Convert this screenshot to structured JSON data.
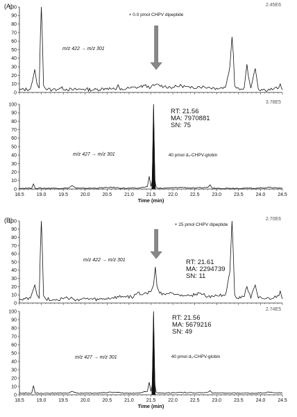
{
  "chart_data": [
    {
      "type": "line",
      "panel_label": "(A)",
      "transition": "m/z 422 → m/z 301",
      "annotation": "+ 0.0 pmol CHPV dipeptide",
      "scale": "2.45E6",
      "metrics": null,
      "yticks": [
        "0",
        "10",
        "20",
        "30",
        "40",
        "50",
        "60",
        "70",
        "80",
        "90",
        "100"
      ],
      "ylim": [
        0,
        100
      ],
      "xlim": [
        18.5,
        24.5
      ],
      "xticks": [],
      "xlabel": "",
      "arrow_x": 21.62,
      "x": [
        18.5,
        18.75,
        18.8,
        18.85,
        18.9,
        18.95,
        18.98,
        19.0,
        19.02,
        19.05,
        19.1,
        19.25,
        19.45,
        19.7,
        19.95,
        20.2,
        20.5,
        20.7,
        20.75,
        20.8,
        21.0,
        21.2,
        21.35,
        21.5,
        21.6,
        21.8,
        22.0,
        22.2,
        22.4,
        22.6,
        22.8,
        23.0,
        23.2,
        23.3,
        23.35,
        23.38,
        23.41,
        23.45,
        23.55,
        23.63,
        23.66,
        23.69,
        23.72,
        23.78,
        23.85,
        23.88,
        23.91,
        23.95,
        24.1,
        24.3,
        24.42,
        24.45,
        24.48,
        24.5
      ],
      "y": [
        3,
        4,
        14,
        27,
        10,
        5,
        70,
        100,
        70,
        8,
        4,
        3,
        5,
        3,
        4,
        3,
        5,
        3,
        9,
        3,
        5,
        6,
        8,
        6,
        9,
        7,
        6,
        8,
        5,
        7,
        6,
        5,
        6,
        30,
        65,
        45,
        8,
        5,
        4,
        6,
        20,
        33,
        20,
        5,
        22,
        28,
        18,
        4,
        3,
        4,
        6,
        10,
        5,
        3
      ]
    },
    {
      "type": "line",
      "panel_label": "",
      "transition": "m/z 427 → m/z 301",
      "annotation": "40 pmol d₅-CHPV-globin",
      "scale": "3.78E5",
      "metrics": [
        "RT: 21.56",
        "MA: 7970881",
        "SN: 75"
      ],
      "yticks": [
        "0",
        "10",
        "20",
        "30",
        "40",
        "50",
        "60",
        "70",
        "80",
        "90",
        "100"
      ],
      "ylim": [
        0,
        100
      ],
      "xlim": [
        18.5,
        24.5
      ],
      "xticks": [
        "18.5",
        "19.0",
        "19.5",
        "20.0",
        "20.5",
        "21.0",
        "21.5",
        "22.0",
        "22.5",
        "23.0",
        "23.5",
        "24.0",
        "24.5"
      ],
      "xlabel": "Time (min)",
      "arrow_x": null,
      "x": [
        18.5,
        18.7,
        18.78,
        18.82,
        18.86,
        19.0,
        19.3,
        19.6,
        19.7,
        19.8,
        20.2,
        20.6,
        20.9,
        21.2,
        21.42,
        21.46,
        21.5,
        21.53,
        21.56,
        21.59,
        21.62,
        21.66,
        21.8,
        22.2,
        22.5,
        22.8,
        22.85,
        22.9,
        23.0,
        23.3,
        23.6,
        23.9,
        24.2,
        24.5
      ],
      "y": [
        1,
        1,
        1,
        6,
        1,
        1,
        1,
        1,
        4,
        1,
        1,
        2,
        1,
        1,
        3,
        15,
        3,
        10,
        100,
        10,
        2,
        1,
        1,
        2,
        1,
        2,
        5,
        1,
        1,
        1,
        1,
        1,
        2,
        1
      ]
    },
    {
      "type": "line",
      "panel_label": "(B)",
      "transition": "m/z 422 → m/z 301",
      "annotation": "+ 25 pmol CHPV dipeptide",
      "scale": "2.70E6",
      "metrics": [
        "RT: 21.61",
        "MA: 2294739",
        "SN: 11"
      ],
      "yticks": [
        "0",
        "10",
        "20",
        "30",
        "40",
        "50",
        "60",
        "70",
        "80",
        "90",
        "100"
      ],
      "ylim": [
        0,
        100
      ],
      "xlim": [
        18.5,
        24.5
      ],
      "xticks": [],
      "xlabel": "",
      "arrow_x": 21.62,
      "x": [
        18.5,
        18.75,
        18.8,
        18.85,
        18.9,
        18.95,
        18.98,
        19.0,
        19.02,
        19.05,
        19.1,
        19.3,
        19.6,
        19.8,
        20.0,
        20.3,
        20.6,
        20.9,
        21.1,
        21.2,
        21.3,
        21.4,
        21.5,
        21.56,
        21.6,
        21.64,
        21.7,
        21.8,
        22.0,
        22.2,
        22.4,
        22.6,
        22.8,
        23.0,
        23.2,
        23.3,
        23.35,
        23.38,
        23.41,
        23.45,
        23.55,
        23.63,
        23.66,
        23.69,
        23.72,
        23.78,
        23.85,
        23.88,
        23.91,
        23.95,
        24.1,
        24.3,
        24.42,
        24.45,
        24.48,
        24.5
      ],
      "y": [
        5,
        6,
        14,
        22,
        10,
        6,
        70,
        100,
        70,
        9,
        5,
        4,
        6,
        4,
        5,
        4,
        6,
        8,
        7,
        13,
        10,
        12,
        14,
        22,
        44,
        20,
        12,
        11,
        12,
        10,
        9,
        12,
        8,
        9,
        10,
        38,
        100,
        60,
        10,
        6,
        6,
        8,
        16,
        20,
        14,
        6,
        18,
        22,
        15,
        6,
        5,
        6,
        9,
        15,
        8,
        5
      ]
    },
    {
      "type": "line",
      "panel_label": "",
      "transition": "m/z 427 → m/z 301",
      "annotation": "40 pmol d₅-CHPV-globin",
      "scale": "2.74E5",
      "metrics": [
        "RT: 21.56",
        "MA: 5679216",
        "SN: 49"
      ],
      "yticks": [
        "0",
        "10",
        "20",
        "30",
        "40",
        "50",
        "60",
        "70",
        "80",
        "90",
        "100"
      ],
      "ylim": [
        0,
        100
      ],
      "xlim": [
        18.5,
        24.5
      ],
      "xticks": [
        "18.5",
        "19.0",
        "19.5",
        "20.0",
        "20.5",
        "21.0",
        "21.5",
        "22.0",
        "22.5",
        "23.0",
        "23.5",
        "24.0",
        "24.5"
      ],
      "xlabel": "Time (min)",
      "arrow_x": null,
      "x": [
        18.5,
        18.7,
        18.78,
        18.82,
        18.86,
        19.0,
        19.3,
        19.6,
        19.7,
        19.8,
        20.2,
        20.6,
        20.9,
        21.2,
        21.42,
        21.46,
        21.5,
        21.53,
        21.56,
        21.59,
        21.62,
        21.66,
        21.8,
        22.2,
        22.5,
        22.8,
        22.85,
        22.9,
        23.0,
        23.3,
        23.6,
        23.9,
        24.2,
        24.5
      ],
      "y": [
        2,
        2,
        2,
        11,
        2,
        2,
        2,
        2,
        4,
        2,
        2,
        3,
        2,
        2,
        4,
        15,
        4,
        12,
        100,
        12,
        3,
        2,
        2,
        3,
        2,
        3,
        5,
        2,
        2,
        2,
        2,
        2,
        3,
        2
      ]
    }
  ]
}
